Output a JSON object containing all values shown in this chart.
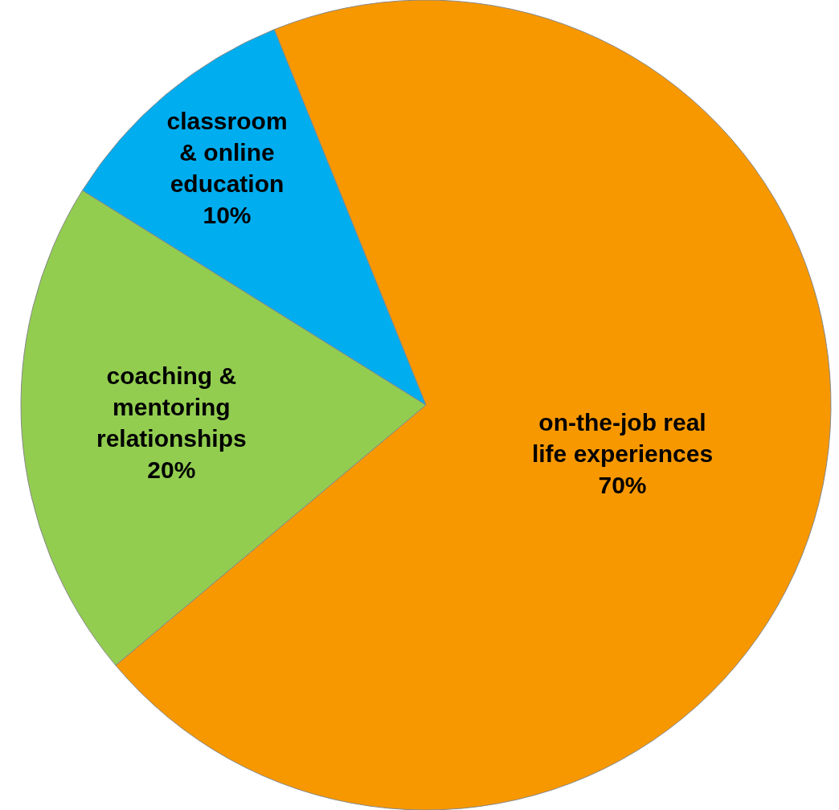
{
  "chart_data": {
    "type": "pie",
    "categories": [
      "on-the-job real\nlife experiences",
      "coaching &\nmentoring\nrelationships",
      "classroom\n& online\neducation"
    ],
    "values": [
      70,
      20,
      10
    ],
    "value_labels": [
      "70%",
      "20%",
      "10%"
    ],
    "colors": [
      "#f79800",
      "#92cd50",
      "#00adef"
    ]
  }
}
